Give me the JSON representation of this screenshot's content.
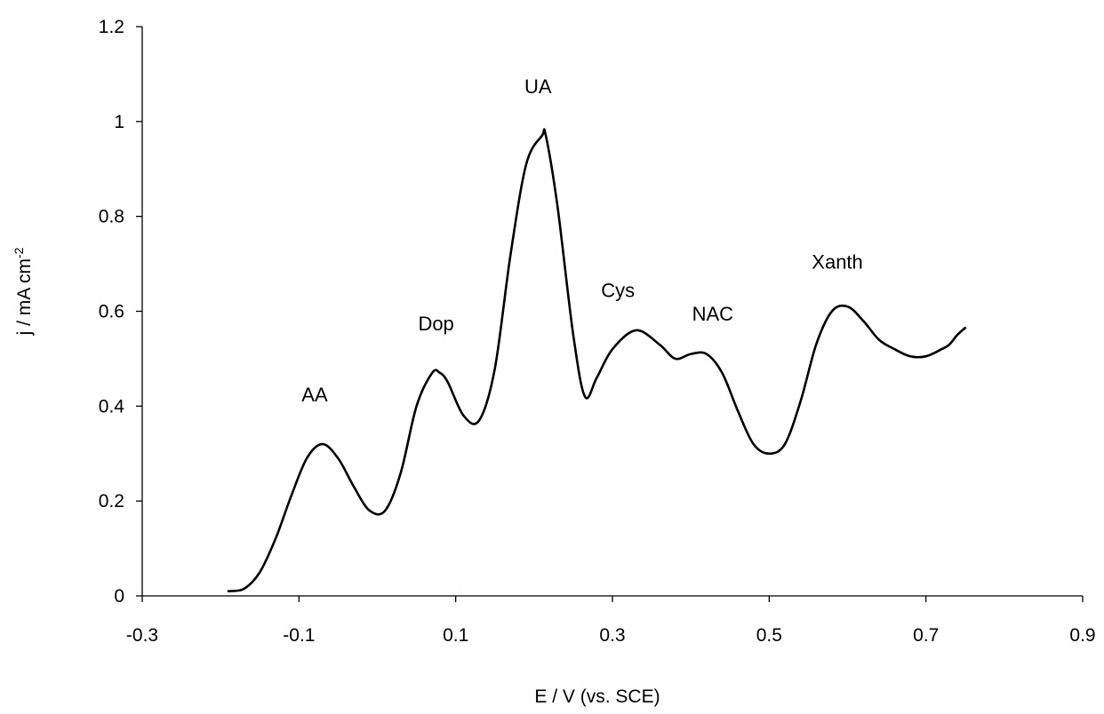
{
  "chart_data": {
    "type": "line",
    "xlabel": "E / V (vs. SCE)",
    "ylabel": {
      "prefix": "j / mA cm",
      "superscript": "-2"
    },
    "xlim": [
      -0.3,
      0.9
    ],
    "ylim": [
      0,
      1.2
    ],
    "x_ticks": [
      -0.3,
      -0.1,
      0.1,
      0.3,
      0.5,
      0.7,
      0.9
    ],
    "x_tick_labels": [
      "-0.3",
      "-0.1",
      "0.1",
      "0.3",
      "0.5",
      "0.7",
      "0.9"
    ],
    "y_ticks": [
      0,
      0.2,
      0.4,
      0.6,
      0.8,
      1.0,
      1.2
    ],
    "y_tick_labels": [
      "0",
      "0.2",
      "0.4",
      "0.6",
      "0.8",
      "1",
      "1.2"
    ],
    "grid": false,
    "legend": "none",
    "series": [
      {
        "color": "#000000",
        "x": [
          -0.19,
          -0.17,
          -0.15,
          -0.13,
          -0.11,
          -0.09,
          -0.07,
          -0.05,
          -0.03,
          -0.01,
          0.01,
          0.03,
          0.05,
          0.07,
          0.08,
          0.09,
          0.11,
          0.13,
          0.15,
          0.17,
          0.19,
          0.21,
          0.215,
          0.23,
          0.25,
          0.265,
          0.28,
          0.3,
          0.33,
          0.36,
          0.38,
          0.4,
          0.42,
          0.44,
          0.46,
          0.48,
          0.5,
          0.52,
          0.54,
          0.56,
          0.58,
          0.6,
          0.62,
          0.64,
          0.66,
          0.68,
          0.7,
          0.72,
          0.73,
          0.74,
          0.75
        ],
        "y": [
          0.01,
          0.015,
          0.05,
          0.12,
          0.21,
          0.29,
          0.32,
          0.29,
          0.23,
          0.18,
          0.18,
          0.26,
          0.4,
          0.47,
          0.47,
          0.45,
          0.38,
          0.37,
          0.48,
          0.72,
          0.91,
          0.97,
          0.97,
          0.82,
          0.55,
          0.42,
          0.46,
          0.52,
          0.56,
          0.53,
          0.5,
          0.51,
          0.51,
          0.47,
          0.39,
          0.32,
          0.3,
          0.32,
          0.41,
          0.53,
          0.6,
          0.61,
          0.58,
          0.54,
          0.52,
          0.505,
          0.505,
          0.52,
          0.53,
          0.55,
          0.565
        ]
      }
    ],
    "annotations": [
      {
        "text": "AA",
        "x": -0.08,
        "y": 0.41
      },
      {
        "text": "Dop",
        "x": 0.075,
        "y": 0.56
      },
      {
        "text": "UA",
        "x": 0.205,
        "y": 1.06
      },
      {
        "text": "Cys",
        "x": 0.307,
        "y": 0.63
      },
      {
        "text": "NAC",
        "x": 0.428,
        "y": 0.58
      },
      {
        "text": "Xanth",
        "x": 0.587,
        "y": 0.69
      }
    ]
  }
}
